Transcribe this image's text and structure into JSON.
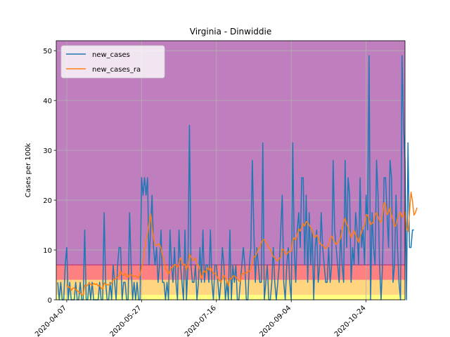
{
  "chart_data": {
    "type": "line",
    "title": "Virginia - Dinwiddie",
    "xlabel": "",
    "ylabel": "Cases per 100k",
    "x_start": "2020-04-01",
    "x_end": "2020-11-12",
    "x_range": [
      "2020-03-31",
      "2020-11-19"
    ],
    "ylim": [
      0,
      52
    ],
    "yticks": [
      0,
      10,
      20,
      30,
      40,
      50
    ],
    "xtick_dates": [
      "2020-04-07",
      "2020-05-27",
      "2020-07-16",
      "2020-09-04",
      "2020-10-24"
    ],
    "xtick_labels": [
      "2020-04-07",
      "2020-05-27",
      "2020-07-16",
      "2020-09-04",
      "2020-10-24"
    ],
    "grid": true,
    "legend_position": "top-left",
    "background_bands": [
      {
        "from": 0,
        "to": 1,
        "color": "#ffff80"
      },
      {
        "from": 1,
        "to": 4,
        "color": "#ffd580"
      },
      {
        "from": 4,
        "to": 7,
        "color": "#ff8080"
      },
      {
        "from": 7,
        "to": 52,
        "color": "#bf7fbf"
      }
    ],
    "band_line": {
      "value": 7,
      "color": "#c03070"
    },
    "series": [
      {
        "name": "new_cases",
        "color": "#1f77b4",
        "values": [
          3.5,
          0,
          3.5,
          0,
          0,
          7,
          10.5,
          0,
          3.5,
          0,
          0,
          0,
          3.5,
          0,
          0,
          3.5,
          0,
          0,
          14,
          0,
          0,
          3.5,
          0,
          3.5,
          0,
          0,
          0,
          0,
          3.5,
          0,
          0,
          17.5,
          3.5,
          0,
          0,
          3.5,
          0,
          7,
          3.5,
          0,
          7,
          10.5,
          10.5,
          0,
          3.5,
          3.5,
          0,
          0,
          17.5,
          7,
          0,
          3.5,
          0,
          3.5,
          0,
          0,
          24.5,
          21,
          24.5,
          21,
          24.5,
          7,
          14,
          21,
          10.5,
          7,
          10.5,
          3.5,
          7,
          14,
          3.5,
          3.5,
          0,
          3.5,
          0,
          14,
          7,
          3.5,
          10.5,
          3.5,
          0,
          14,
          7,
          3.5,
          0,
          14,
          0,
          7,
          35,
          7,
          3.5,
          3.5,
          7,
          0,
          3.5,
          10.5,
          3.5,
          14,
          3.5,
          7,
          7,
          3.5,
          14,
          3.5,
          0,
          7,
          7,
          3.5,
          0,
          3.5,
          10.5,
          7,
          0,
          3.5,
          0,
          14,
          0,
          7,
          3.5,
          7,
          0,
          0,
          3.5,
          7,
          10.5,
          7,
          0,
          0,
          7,
          10.5,
          28,
          14,
          3.5,
          10.5,
          7,
          3.5,
          3.5,
          31.5,
          0,
          3.5,
          7,
          0,
          0,
          3.5,
          10.5,
          3.5,
          0,
          3.5,
          7,
          14,
          21,
          3.5,
          0,
          7,
          10.5,
          3.5,
          0,
          31.5,
          10.5,
          3.5,
          14,
          17.5,
          10.5,
          24.5,
          24.5,
          7,
          21,
          3.5,
          17.5,
          7,
          14,
          0,
          10.5,
          14,
          3.5,
          7,
          17.5,
          10.5,
          7,
          3.5,
          3.5,
          10.5,
          3.5,
          7,
          28,
          14,
          10.5,
          7,
          3.5,
          14,
          7,
          3.5,
          28,
          10.5,
          24.5,
          21,
          3.5,
          10.5,
          7,
          17.5,
          14,
          7,
          24.5,
          10.5,
          14,
          7,
          21,
          14,
          49,
          0,
          17.5,
          10.5,
          7,
          28,
          21,
          7,
          0,
          7,
          24.5,
          24.5,
          17.5,
          10.5,
          28,
          24.5,
          3.5,
          7,
          21,
          10.5,
          3.5,
          0,
          49,
          35,
          28,
          0,
          31.5,
          10.5,
          10.5,
          14,
          14
        ]
      },
      {
        "name": "new_cases_ra",
        "color": "#ff7f0e",
        "values": [
          null,
          null,
          null,
          null,
          null,
          null,
          3.0,
          2.5,
          2.6,
          1.9,
          2.3,
          2.4,
          2.0,
          1.8,
          1.6,
          1.4,
          1.0,
          1.0,
          2.9,
          2.8,
          2.9,
          3.4,
          3.1,
          2.9,
          3.3,
          3.1,
          3.2,
          2.8,
          2.9,
          2.3,
          2.2,
          3.4,
          3.1,
          3.0,
          3.0,
          3.1,
          3.4,
          4.0,
          4.1,
          4.3,
          4.5,
          4.9,
          5.7,
          5.0,
          4.9,
          5.3,
          4.7,
          4.5,
          5.2,
          5.0,
          4.8,
          4.7,
          4.8,
          4.6,
          4.4,
          4.9,
          6.5,
          7.4,
          10.0,
          12.1,
          13.2,
          15.3,
          17.2,
          14.5,
          12.3,
          11.0,
          10.9,
          11.1,
          11.2,
          10.3,
          8.9,
          7.8,
          6.3,
          5.9,
          5.2,
          5.9,
          6.5,
          6.6,
          7.1,
          6.9,
          6.5,
          7.5,
          8.4,
          7.5,
          7.0,
          7.2,
          6.0,
          6.9,
          9.2,
          8.6,
          8.0,
          7.9,
          8.4,
          7.1,
          7.0,
          5.9,
          4.3,
          5.3,
          5.8,
          5.4,
          6.4,
          6.0,
          6.5,
          5.9,
          5.3,
          5.3,
          4.9,
          4.3,
          3.9,
          3.6,
          4.3,
          4.9,
          4.4,
          3.7,
          2.8,
          4.3,
          4.2,
          4.8,
          4.8,
          4.5,
          4.2,
          3.8,
          3.7,
          5.3,
          5.2,
          5.4,
          5.4,
          5.7,
          5.7,
          6.3,
          7.5,
          8.7,
          8.6,
          9.4,
          10.3,
          10.4,
          11.5,
          12.0,
          12.1,
          11.6,
          11.2,
          10.4,
          10.2,
          9.4,
          8.6,
          8.5,
          8.0,
          7.8,
          8.3,
          8.5,
          10.2,
          10.0,
          9.2,
          9.1,
          9.6,
          9.7,
          9.7,
          12.0,
          12.4,
          12.0,
          13.0,
          14.2,
          13.8,
          14.5,
          15.3,
          14.8,
          15.7,
          15.6,
          15.0,
          14.5,
          13.9,
          12.8,
          12.5,
          13.0,
          12.5,
          11.5,
          11.0,
          11.0,
          10.5,
          10.3,
          10.6,
          11.1,
          12.3,
          12.8,
          12.0,
          11.7,
          11.1,
          11.5,
          11.9,
          12.4,
          14.0,
          15.6,
          16.4,
          15.2,
          14.5,
          13.6,
          12.5,
          13.2,
          13.9,
          13.0,
          12.3,
          11.5,
          12.8,
          13.8,
          14.6,
          15.0,
          17.1,
          17.0,
          16.1,
          15.1,
          15.3,
          15.8,
          17.0,
          17.5,
          16.7,
          15.9,
          15.5,
          17.0,
          19.5,
          19.0,
          17.1,
          17.5,
          18.5,
          17.0,
          16.0,
          14.7,
          15.0,
          16.4,
          17.0,
          17.6,
          16.5,
          17.0,
          17.8,
          14.5,
          13.7,
          17.5,
          21.6,
          19.8,
          17.0,
          17.5,
          18.5
        ]
      }
    ]
  }
}
